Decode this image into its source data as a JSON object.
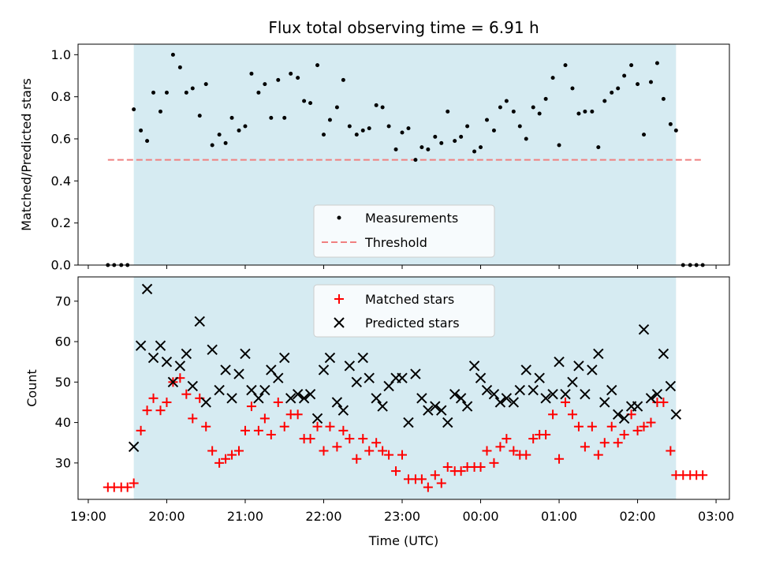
{
  "chart_data": [
    {
      "type": "scatter",
      "title": "Flux total observing time = 6.91 h",
      "xlabel": "",
      "ylabel": "Matched/Predicted stars",
      "ylim": [
        0,
        1.05
      ],
      "yticks": [
        0.0,
        0.2,
        0.4,
        0.6,
        0.8,
        1.0
      ],
      "ytick_labels": [
        "0.0",
        "0.2",
        "0.4",
        "0.6",
        "0.8",
        "1.0"
      ],
      "xlim_hours": [
        18.87,
        27.17
      ],
      "observing_window_hours": [
        19.58,
        26.49
      ],
      "window_color": "#add8e6",
      "legend_position": "lower-center",
      "threshold": {
        "name": "Threshold",
        "value": 0.5,
        "x_range_hours": [
          19.25,
          26.83
        ],
        "color": "#f08080"
      },
      "series": [
        {
          "name": "Measurements",
          "color": "#000000",
          "x": [
            19.25,
            19.33,
            19.42,
            19.5,
            19.58,
            19.67,
            19.75,
            19.83,
            19.92,
            20.0,
            20.08,
            20.17,
            20.25,
            20.33,
            20.42,
            20.5,
            20.58,
            20.67,
            20.75,
            20.83,
            20.92,
            21.0,
            21.08,
            21.17,
            21.25,
            21.33,
            21.42,
            21.5,
            21.58,
            21.67,
            21.75,
            21.83,
            21.92,
            22.0,
            22.08,
            22.17,
            22.25,
            22.33,
            22.42,
            22.5,
            22.58,
            22.67,
            22.75,
            22.83,
            22.92,
            23.0,
            23.08,
            23.17,
            23.25,
            23.33,
            23.42,
            23.5,
            23.58,
            23.67,
            23.75,
            23.83,
            23.92,
            24.0,
            24.08,
            24.17,
            24.25,
            24.33,
            24.42,
            24.5,
            24.58,
            24.67,
            24.75,
            24.83,
            24.92,
            25.0,
            25.08,
            25.17,
            25.25,
            25.33,
            25.42,
            25.5,
            25.58,
            25.67,
            25.75,
            25.83,
            25.92,
            26.0,
            26.08,
            26.17,
            26.25,
            26.33,
            26.42,
            26.49,
            26.58,
            26.67,
            26.75,
            26.83
          ],
          "y": [
            0.0,
            0.0,
            0.0,
            0.0,
            0.74,
            0.64,
            0.59,
            0.82,
            0.73,
            0.82,
            1.0,
            0.94,
            0.82,
            0.84,
            0.71,
            0.86,
            0.57,
            0.62,
            0.58,
            0.7,
            0.64,
            0.66,
            0.91,
            0.82,
            0.86,
            0.7,
            0.88,
            0.7,
            0.91,
            0.89,
            0.78,
            0.77,
            0.95,
            0.62,
            0.69,
            0.75,
            0.88,
            0.66,
            0.62,
            0.64,
            0.65,
            0.76,
            0.75,
            0.66,
            0.55,
            0.63,
            0.65,
            0.5,
            0.56,
            0.55,
            0.61,
            0.58,
            0.73,
            0.59,
            0.61,
            0.66,
            0.54,
            0.56,
            0.69,
            0.64,
            0.75,
            0.78,
            0.73,
            0.66,
            0.6,
            0.75,
            0.72,
            0.79,
            0.89,
            0.57,
            0.95,
            0.84,
            0.72,
            0.73,
            0.73,
            0.56,
            0.78,
            0.82,
            0.84,
            0.9,
            0.95,
            0.86,
            0.62,
            0.87,
            0.96,
            0.79,
            0.67,
            0.64,
            0.0,
            0.0,
            0.0,
            0.0
          ]
        }
      ]
    },
    {
      "type": "scatter",
      "title": "",
      "xlabel": "Time (UTC)",
      "ylabel": "Count",
      "ylim": [
        21,
        76
      ],
      "yticks": [
        30,
        40,
        50,
        60,
        70
      ],
      "ytick_labels": [
        "30",
        "40",
        "50",
        "60",
        "70"
      ],
      "xlim_hours": [
        18.87,
        27.17
      ],
      "xticks_hours": [
        19,
        20,
        21,
        22,
        23,
        24,
        25,
        26,
        27
      ],
      "xtick_labels": [
        "19:00",
        "20:00",
        "21:00",
        "22:00",
        "23:00",
        "00:00",
        "01:00",
        "02:00",
        "03:00"
      ],
      "observing_window_hours": [
        19.58,
        26.49
      ],
      "window_color": "#add8e6",
      "legend_position": "upper-center",
      "series": [
        {
          "name": "Matched stars",
          "marker": "plus",
          "color": "#ff0000",
          "x": [
            19.25,
            19.33,
            19.42,
            19.5,
            19.58,
            19.67,
            19.75,
            19.83,
            19.92,
            20.0,
            20.08,
            20.17,
            20.25,
            20.33,
            20.42,
            20.5,
            20.58,
            20.67,
            20.75,
            20.83,
            20.92,
            21.0,
            21.08,
            21.17,
            21.25,
            21.33,
            21.42,
            21.5,
            21.58,
            21.67,
            21.75,
            21.83,
            21.92,
            22.0,
            22.08,
            22.17,
            22.25,
            22.33,
            22.42,
            22.5,
            22.58,
            22.67,
            22.75,
            22.83,
            22.92,
            23.0,
            23.08,
            23.17,
            23.25,
            23.33,
            23.42,
            23.5,
            23.58,
            23.67,
            23.75,
            23.83,
            23.92,
            24.0,
            24.08,
            24.17,
            24.25,
            24.33,
            24.42,
            24.5,
            24.58,
            24.67,
            24.75,
            24.83,
            24.92,
            25.0,
            25.08,
            25.17,
            25.25,
            25.33,
            25.42,
            25.5,
            25.58,
            25.67,
            25.75,
            25.83,
            25.92,
            26.0,
            26.08,
            26.17,
            26.25,
            26.33,
            26.42,
            26.49,
            26.58,
            26.67,
            26.75,
            26.83
          ],
          "y": [
            24,
            24,
            24,
            24,
            25,
            38,
            43,
            46,
            43,
            45,
            50,
            51,
            47,
            41,
            46,
            39,
            33,
            30,
            31,
            32,
            33,
            38,
            44,
            38,
            41,
            37,
            45,
            39,
            42,
            42,
            36,
            36,
            39,
            33,
            39,
            34,
            38,
            36,
            31,
            36,
            33,
            35,
            33,
            32,
            28,
            32,
            26,
            26,
            26,
            24,
            27,
            25,
            29,
            28,
            28,
            29,
            29,
            29,
            33,
            30,
            34,
            36,
            33,
            32,
            32,
            36,
            37,
            37,
            42,
            31,
            45,
            42,
            39,
            34,
            39,
            32,
            35,
            39,
            35,
            37,
            42,
            38,
            39,
            40,
            45,
            45,
            33,
            27,
            27,
            27,
            27,
            27
          ]
        },
        {
          "name": "Predicted stars",
          "marker": "x",
          "color": "#000000",
          "x": [
            19.58,
            19.67,
            19.75,
            19.83,
            19.92,
            20.0,
            20.08,
            20.17,
            20.25,
            20.33,
            20.42,
            20.5,
            20.58,
            20.67,
            20.75,
            20.83,
            20.92,
            21.0,
            21.08,
            21.17,
            21.25,
            21.33,
            21.42,
            21.5,
            21.58,
            21.67,
            21.75,
            21.83,
            21.92,
            22.0,
            22.08,
            22.17,
            22.25,
            22.33,
            22.42,
            22.5,
            22.58,
            22.67,
            22.75,
            22.83,
            22.92,
            23.0,
            23.08,
            23.17,
            23.25,
            23.33,
            23.42,
            23.5,
            23.58,
            23.67,
            23.75,
            23.83,
            23.92,
            24.0,
            24.08,
            24.17,
            24.25,
            24.33,
            24.42,
            24.5,
            24.58,
            24.67,
            24.75,
            24.83,
            24.92,
            25.0,
            25.08,
            25.17,
            25.25,
            25.33,
            25.42,
            25.5,
            25.58,
            25.67,
            25.75,
            25.83,
            25.92,
            26.0,
            26.08,
            26.17,
            26.25,
            26.33,
            26.42,
            26.49
          ],
          "y": [
            34,
            59,
            73,
            56,
            59,
            55,
            50,
            54,
            57,
            49,
            65,
            45,
            58,
            48,
            53,
            46,
            52,
            57,
            48,
            46,
            48,
            53,
            51,
            56,
            46,
            47,
            46,
            47,
            41,
            53,
            56,
            45,
            43,
            54,
            50,
            56,
            51,
            46,
            44,
            49,
            51,
            51,
            40,
            52,
            46,
            43,
            44,
            43,
            40,
            47,
            46,
            44,
            54,
            51,
            48,
            47,
            45,
            46,
            45,
            48,
            53,
            48,
            51,
            46,
            47,
            55,
            47,
            50,
            54,
            47,
            53,
            57,
            45,
            48,
            42,
            41,
            44,
            44,
            63,
            46,
            47,
            57,
            49,
            42
          ]
        }
      ]
    }
  ]
}
